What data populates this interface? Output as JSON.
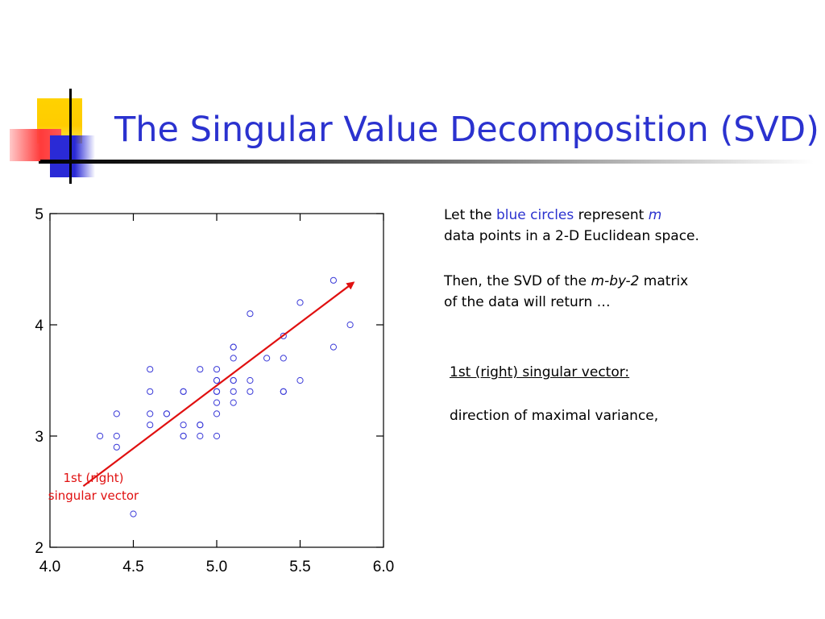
{
  "slide": {
    "title": "The Singular Value Decomposition (SVD)"
  },
  "text_block_1": {
    "line1_a": "Let the ",
    "line1_b": "blue circles",
    "line1_c": " represent ",
    "line1_d": "m",
    "line2": "data points in a 2-D Euclidean space."
  },
  "text_block_2": {
    "line1_a": "Then, the SVD of the ",
    "line1_b": "m-by-2",
    "line1_c": " matrix",
    "line2": "of the data will return …"
  },
  "vector_note": {
    "heading": "1st (right) singular vector:",
    "description": "direction of maximal variance,"
  },
  "arrow_label": {
    "line1": "1st (right)",
    "line2": "singular vector"
  },
  "colors": {
    "title": "#2b32cf",
    "points": "#3a3ad8",
    "arrow": "#e01010"
  },
  "chart_data": {
    "type": "scatter",
    "title": "",
    "xlabel": "",
    "ylabel": "",
    "xlim": [
      4.0,
      6.0
    ],
    "ylim": [
      2.0,
      5.0
    ],
    "xticks": [
      "4.0",
      "4.5",
      "5.0",
      "5.5",
      "6.0"
    ],
    "yticks": [
      "2",
      "3",
      "4",
      "5"
    ],
    "grid": false,
    "marker": "open-circle",
    "points": [
      [
        4.3,
        3.0
      ],
      [
        4.4,
        2.9
      ],
      [
        4.4,
        3.0
      ],
      [
        4.4,
        3.2
      ],
      [
        4.5,
        2.3
      ],
      [
        4.6,
        3.1
      ],
      [
        4.6,
        3.2
      ],
      [
        4.6,
        3.4
      ],
      [
        4.6,
        3.6
      ],
      [
        4.7,
        3.2
      ],
      [
        4.7,
        3.2
      ],
      [
        4.8,
        3.0
      ],
      [
        4.8,
        3.0
      ],
      [
        4.8,
        3.1
      ],
      [
        4.8,
        3.4
      ],
      [
        4.8,
        3.4
      ],
      [
        4.9,
        3.0
      ],
      [
        4.9,
        3.1
      ],
      [
        4.9,
        3.1
      ],
      [
        4.9,
        3.6
      ],
      [
        5.0,
        3.0
      ],
      [
        5.0,
        3.2
      ],
      [
        5.0,
        3.3
      ],
      [
        5.0,
        3.4
      ],
      [
        5.0,
        3.4
      ],
      [
        5.0,
        3.5
      ],
      [
        5.0,
        3.5
      ],
      [
        5.0,
        3.6
      ],
      [
        5.1,
        3.3
      ],
      [
        5.1,
        3.4
      ],
      [
        5.1,
        3.5
      ],
      [
        5.1,
        3.5
      ],
      [
        5.1,
        3.7
      ],
      [
        5.1,
        3.8
      ],
      [
        5.1,
        3.8
      ],
      [
        5.2,
        3.4
      ],
      [
        5.2,
        3.5
      ],
      [
        5.2,
        4.1
      ],
      [
        5.3,
        3.7
      ],
      [
        5.4,
        3.4
      ],
      [
        5.4,
        3.4
      ],
      [
        5.4,
        3.7
      ],
      [
        5.4,
        3.9
      ],
      [
        5.5,
        3.5
      ],
      [
        5.5,
        4.2
      ],
      [
        5.7,
        3.8
      ],
      [
        5.7,
        4.4
      ],
      [
        5.8,
        4.0
      ]
    ],
    "arrow": {
      "from": [
        4.2,
        2.55
      ],
      "to": [
        5.82,
        4.38
      ],
      "label": "1st (right) singular vector"
    }
  }
}
